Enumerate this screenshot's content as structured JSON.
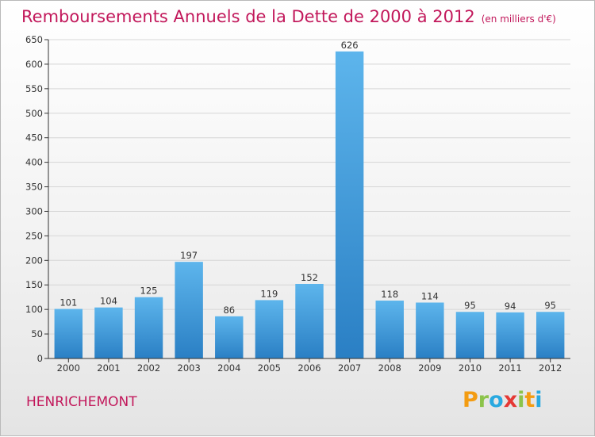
{
  "header": {
    "title": "Remboursements Annuels de la Dette de 2000 à 2012",
    "subtitle": "(en milliers d'€)"
  },
  "footer": {
    "commune": "HENRICHEMONT",
    "logo_text": "Proxiti"
  },
  "colors": {
    "title": "#c2185b",
    "bar_light": "#5db5ec",
    "bar_dark": "#2a7fc4",
    "logo_letters": [
      "#f39c12",
      "#8bc34a",
      "#29a9e0",
      "#e53935",
      "#8bc34a",
      "#f39c12",
      "#29a9e0"
    ]
  },
  "chart_data": {
    "type": "bar",
    "categories": [
      "2000",
      "2001",
      "2002",
      "2003",
      "2004",
      "2005",
      "2006",
      "2007",
      "2008",
      "2009",
      "2010",
      "2011",
      "2012"
    ],
    "values": [
      101,
      104,
      125,
      197,
      86,
      119,
      152,
      626,
      118,
      114,
      95,
      94,
      95
    ],
    "data_labels": [
      "101",
      "104",
      "125",
      "197",
      "86",
      "119",
      "152",
      "626",
      "118",
      "114",
      "95",
      "94",
      "95"
    ],
    "ylim": [
      0,
      650
    ],
    "yticks": [
      0,
      50,
      100,
      150,
      200,
      250,
      300,
      350,
      400,
      450,
      500,
      550,
      600,
      650
    ],
    "grid": true,
    "legend": "none"
  }
}
